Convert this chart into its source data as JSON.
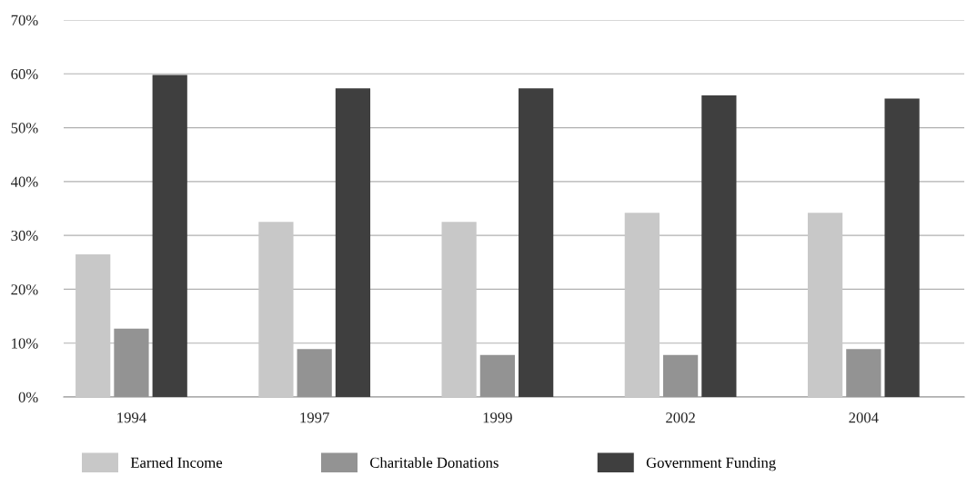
{
  "chart_data": {
    "type": "bar",
    "categories": [
      "1994",
      "1997",
      "1999",
      "2002",
      "2004"
    ],
    "series": [
      {
        "name": "Earned Income",
        "color": "#c8c8c8",
        "values": [
          26.5,
          32.5,
          32.5,
          34.2,
          34.2
        ]
      },
      {
        "name": "Charitable Donations",
        "color": "#939393",
        "values": [
          12.7,
          8.9,
          7.8,
          7.8,
          8.9
        ]
      },
      {
        "name": "Government Funding",
        "color": "#3f3f3f",
        "values": [
          59.8,
          57.3,
          57.3,
          56,
          55.4
        ]
      }
    ],
    "ylim": [
      0,
      70
    ],
    "yticks": [
      {
        "value": 0,
        "label": "0%"
      },
      {
        "value": 10,
        "label": "10%"
      },
      {
        "value": 20,
        "label": "20%"
      },
      {
        "value": 30,
        "label": "30%"
      },
      {
        "value": 40,
        "label": "40%"
      },
      {
        "value": 50,
        "label": "50%"
      },
      {
        "value": 60,
        "label": "60%"
      },
      {
        "value": 70,
        "label": "70%"
      }
    ],
    "grid": "y",
    "legend": "bottom"
  }
}
